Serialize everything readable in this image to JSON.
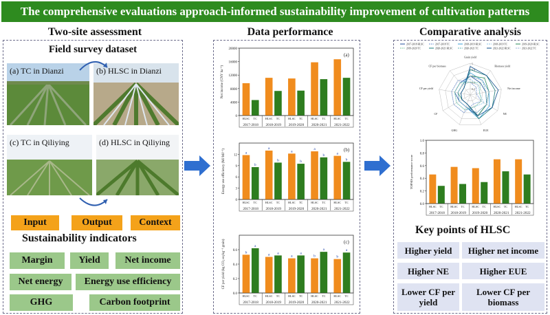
{
  "banner": "The comprehensive evaluations approach-informed sustainability improvement of cultivation patterns",
  "left": {
    "title": "Two-site assessment",
    "subtitle": "Field survey dataset",
    "photos": [
      "(a) TC in Dianzi",
      "(b) HLSC in Dianzi",
      "(c) TC in Qiliying",
      "(d) HLSC in Qiliying"
    ],
    "categories": [
      "Input",
      "Output",
      "Context"
    ],
    "indicators_title": "Sustainability indicators",
    "indicators": [
      "Margin",
      "Yield",
      "Net income",
      "Net energy",
      "Energy use efficiency",
      "GHG",
      "Carbon footprint"
    ]
  },
  "middle": {
    "title": "Data performance"
  },
  "right": {
    "title": "Comparative analysis",
    "key_title": "Key points of HLSC",
    "key_points": [
      "Higher yield",
      "Higher net income",
      "Higher NE",
      "Higher EUE",
      "Lower CF per yield",
      "Lower CF per biomass"
    ]
  },
  "colors": {
    "orange": "#f08c1e",
    "green": "#2e7d1f",
    "banner": "#2e8b1f",
    "arrow": "#2f6fd0"
  },
  "chart_data": [
    {
      "type": "bar",
      "panel": "(a)",
      "ylabel": "Net income (CNY ha⁻¹)",
      "categories": [
        "2017-2018",
        "2018-2019",
        "2019-2020",
        "2020-2021",
        "2021-2022"
      ],
      "x_tick_labels": [
        "HLSC",
        "TC"
      ],
      "ylim": [
        0,
        20000
      ],
      "yticks": [
        "0",
        "4000",
        "8000",
        "12000",
        "16000",
        "20000"
      ],
      "series": [
        {
          "name": "HLSC",
          "values": [
            9600,
            11200,
            11000,
            15800,
            16700
          ]
        },
        {
          "name": "TC",
          "values": [
            4600,
            7300,
            7400,
            10800,
            11200
          ]
        }
      ]
    },
    {
      "type": "bar",
      "panel": "(b)",
      "ylabel": "Energy use efficiency (MJ MJ⁻¹)",
      "categories": [
        "2017-2018",
        "2018-2019",
        "2019-2020",
        "2020-2021",
        "2021-2022"
      ],
      "x_tick_labels": [
        "HLSC",
        "TC"
      ],
      "ylim": [
        0,
        15
      ],
      "yticks": [
        "0",
        "3",
        "6",
        "9",
        "12"
      ],
      "series": [
        {
          "name": "HLSC",
          "values": [
            11.8,
            13.0,
            12.2,
            12.8,
            11.6
          ]
        },
        {
          "name": "TC",
          "values": [
            8.6,
            9.8,
            9.5,
            11.2,
            10.0
          ]
        }
      ],
      "letters": [
        [
          "a",
          "b"
        ],
        [
          "a",
          "b"
        ],
        [
          "a",
          "b"
        ],
        [
          "a",
          "b"
        ],
        [
          "a",
          "b"
        ]
      ]
    },
    {
      "type": "bar",
      "panel": "(c)",
      "ylabel": "CF per yield (kg CO₂-eq kg⁻¹ grain)",
      "categories": [
        "2017-2018",
        "2018-2019",
        "2019-2020",
        "2020-2021",
        "2021-2022"
      ],
      "x_tick_labels": [
        "HLSC",
        "TC"
      ],
      "ylim": [
        0,
        0.8
      ],
      "yticks": [
        "0.0",
        "0.2",
        "0.4",
        "0.6"
      ],
      "series": [
        {
          "name": "HLSC",
          "values": [
            0.53,
            0.5,
            0.48,
            0.48,
            0.47
          ]
        },
        {
          "name": "TC",
          "values": [
            0.62,
            0.52,
            0.52,
            0.57,
            0.56
          ]
        }
      ],
      "letters": [
        [
          "b",
          "a"
        ],
        [
          "a",
          "a"
        ],
        [
          "a",
          "a"
        ],
        [
          "b",
          "a"
        ],
        [
          "b",
          "a"
        ]
      ]
    },
    {
      "type": "radar",
      "axes": [
        "Grain yield",
        "Biomass yield",
        "Net income",
        "NE",
        "EUE",
        "GHG",
        "CF",
        "CF per yield",
        "CF per biomass"
      ],
      "rticks": [
        "0.2",
        "0.4",
        "0.6",
        "0.8",
        "1"
      ],
      "series": [
        {
          "name": "2017-2018 HLSC",
          "color": "#1f4e99",
          "values": [
            0.6,
            0.5,
            0.5,
            0.6,
            0.7,
            0.4,
            0.4,
            0.5,
            0.5
          ]
        },
        {
          "name": "2017-2018 TC",
          "color": "#6a8fd0",
          "values": [
            0.4,
            0.3,
            0.2,
            0.4,
            0.3,
            0.6,
            0.6,
            0.6,
            0.6
          ]
        },
        {
          "name": "2018-2019 HLSC",
          "color": "#3a9fd8",
          "values": [
            0.7,
            0.6,
            0.6,
            0.7,
            0.8,
            0.4,
            0.4,
            0.4,
            0.4
          ]
        },
        {
          "name": "2018-2019 TC",
          "color": "#8ac6e8",
          "values": [
            0.5,
            0.4,
            0.3,
            0.5,
            0.4,
            0.5,
            0.5,
            0.5,
            0.5
          ]
        },
        {
          "name": "2019-2020 HLSC",
          "color": "#2a8a5a",
          "values": [
            0.6,
            0.7,
            0.6,
            0.6,
            0.7,
            0.3,
            0.3,
            0.4,
            0.4
          ]
        },
        {
          "name": "2019-2020 TC",
          "color": "#7bc49b",
          "values": [
            0.4,
            0.5,
            0.3,
            0.4,
            0.4,
            0.5,
            0.5,
            0.5,
            0.5
          ]
        },
        {
          "name": "2020-2021 HLSC",
          "color": "#1a7a7a",
          "values": [
            0.8,
            0.8,
            0.8,
            0.8,
            0.8,
            0.3,
            0.3,
            0.3,
            0.3
          ]
        },
        {
          "name": "2020-2021 TC",
          "color": "#5fb0b0",
          "values": [
            0.6,
            0.6,
            0.5,
            0.6,
            0.6,
            0.4,
            0.4,
            0.4,
            0.4
          ]
        },
        {
          "name": "2021-2022 HLSC",
          "color": "#0d4d8a",
          "values": [
            0.9,
            0.8,
            0.9,
            0.8,
            0.7,
            0.3,
            0.3,
            0.3,
            0.3
          ]
        },
        {
          "name": "2021-2022 TC",
          "color": "#9ab0d8",
          "values": [
            0.6,
            0.6,
            0.6,
            0.6,
            0.6,
            0.4,
            0.4,
            0.4,
            0.4
          ]
        }
      ]
    },
    {
      "type": "bar",
      "ylabel": "TOPSIS performance score",
      "categories": [
        "2017-2018",
        "2018-2019",
        "2019-2020",
        "2020-2021",
        "2021-2022"
      ],
      "x_tick_labels": [
        "HLSC",
        "TC"
      ],
      "ylim": [
        0,
        1.0
      ],
      "yticks": [
        "0.0",
        "0.2",
        "0.4",
        "0.6",
        "0.8",
        "1.0"
      ],
      "series": [
        {
          "name": "HLSC",
          "values": [
            0.46,
            0.58,
            0.56,
            0.7,
            0.7
          ]
        },
        {
          "name": "TC",
          "values": [
            0.28,
            0.31,
            0.34,
            0.51,
            0.46
          ]
        }
      ]
    }
  ]
}
